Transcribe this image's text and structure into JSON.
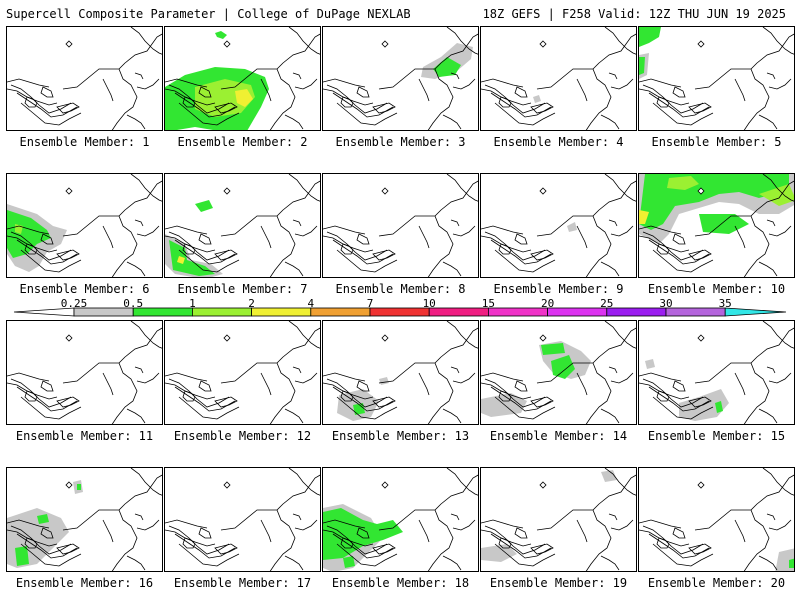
{
  "header": {
    "left_title": "Supercell Composite Parameter | College of DuPage NEXLAB",
    "right_title": "18Z GEFS | F258 Valid: 12Z THU JUN 19 2025"
  },
  "legend": {
    "ticks": [
      "0.25",
      "0.5",
      "1",
      "2",
      "4",
      "7",
      "10",
      "15",
      "20",
      "25",
      "30",
      "35"
    ],
    "colors": [
      "#c8c8c8",
      "#32e632",
      "#9bf032",
      "#f0f032",
      "#f0a032",
      "#f03232",
      "#f01e82",
      "#f032c8",
      "#dc32f0",
      "#9b1ef0",
      "#b464dc",
      "#32e6e6"
    ],
    "left_color": "#ffffff"
  },
  "members": [
    {
      "label": "Ensemble Member: 1"
    },
    {
      "label": "Ensemble Member: 2"
    },
    {
      "label": "Ensemble Member: 3"
    },
    {
      "label": "Ensemble Member: 4"
    },
    {
      "label": "Ensemble Member: 5"
    },
    {
      "label": "Ensemble Member: 6"
    },
    {
      "label": "Ensemble Member: 7"
    },
    {
      "label": "Ensemble Member: 8"
    },
    {
      "label": "Ensemble Member: 9"
    },
    {
      "label": "Ensemble Member: 10"
    },
    {
      "label": "Ensemble Member: 11"
    },
    {
      "label": "Ensemble Member: 12"
    },
    {
      "label": "Ensemble Member: 13"
    },
    {
      "label": "Ensemble Member: 14"
    },
    {
      "label": "Ensemble Member: 15"
    },
    {
      "label": "Ensemble Member: 16"
    },
    {
      "label": "Ensemble Member: 17"
    },
    {
      "label": "Ensemble Member: 18"
    },
    {
      "label": "Ensemble Member: 19"
    },
    {
      "label": "Ensemble Member: 20"
    }
  ]
}
